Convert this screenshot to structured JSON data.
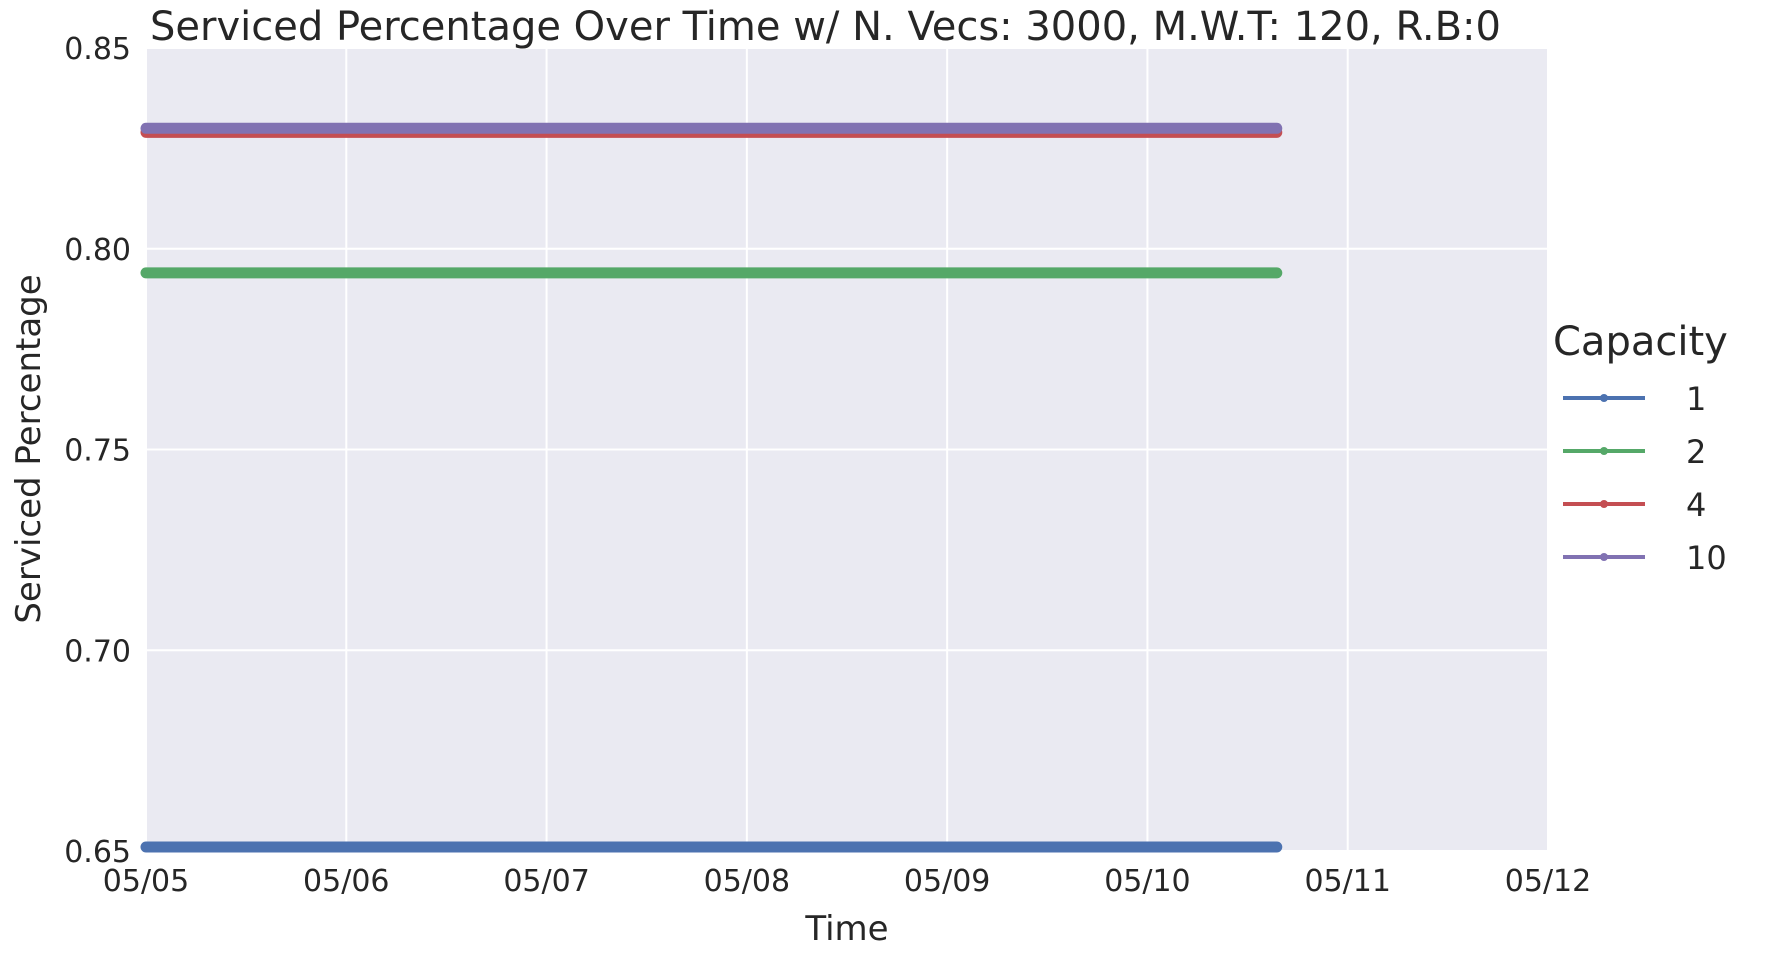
{
  "chart_data": {
    "type": "line",
    "title": "Serviced Percentage Over Time w/ N. Vecs: 3000, M.W.T: 120, R.B:0",
    "xlabel": "Time",
    "ylabel": "Serviced Percentage",
    "xlim": [
      "05/05",
      "05/12"
    ],
    "x_ticks": [
      "05/05",
      "05/06",
      "05/07",
      "05/08",
      "05/09",
      "05/10",
      "05/11",
      "05/12"
    ],
    "ylim": [
      0.65,
      0.85
    ],
    "y_ticks": [
      "0.65",
      "0.70",
      "0.75",
      "0.80",
      "0.85"
    ],
    "grid": true,
    "plot_background": "#eaeaf2",
    "grid_color": "#ffffff",
    "legend": {
      "title": "Capacity",
      "placement": "right"
    },
    "series": [
      {
        "name": "1",
        "color": "#4c72b0",
        "x": [
          "05/05",
          "05/10 15:30"
        ],
        "values": [
          0.651,
          0.651
        ]
      },
      {
        "name": "2",
        "color": "#55a868",
        "x": [
          "05/05",
          "05/10 15:30"
        ],
        "values": [
          0.794,
          0.794
        ]
      },
      {
        "name": "4",
        "color": "#c44e52",
        "x": [
          "05/05",
          "05/10 15:30"
        ],
        "values": [
          0.829,
          0.829
        ]
      },
      {
        "name": "10",
        "color": "#8172b2",
        "x": [
          "05/05",
          "05/10 15:30"
        ],
        "values": [
          0.83,
          0.83
        ]
      }
    ]
  }
}
